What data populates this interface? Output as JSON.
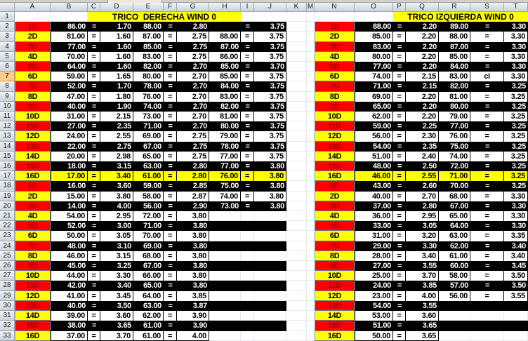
{
  "columns": [
    "A",
    "B",
    "C",
    "D",
    "E",
    "F",
    "G",
    "H",
    "I",
    "J",
    "K",
    "M",
    "N",
    "O",
    "P",
    "Q",
    "R",
    "S",
    "T"
  ],
  "row_numbers": [
    "1",
    "2",
    "3",
    "4",
    "5",
    "6",
    "7",
    "8",
    "9",
    "10",
    "11",
    "12",
    "13",
    "14",
    "15",
    "16",
    "17",
    "18",
    "19",
    "20",
    "21",
    "22",
    "23",
    "24",
    "25",
    "26",
    "27",
    "28",
    "29",
    "30",
    "31",
    "32",
    "33"
  ],
  "highlighted_row_header": "7",
  "colors": {
    "label_red_bg": "#FF0000",
    "label_red_text": "#A00000",
    "label_yellow_bg": "#FFFF00",
    "black_row_bg": "#000000",
    "highlight_row_bg": "#FFFF00",
    "title_bg": "#FFFF00"
  },
  "left_table": {
    "title": "TRICO  DERECHA WIND 0",
    "rows": [
      {
        "row": "2",
        "label": "1D",
        "label_style": "red",
        "style": "black",
        "span": 9,
        "cells": [
          "86.00",
          "=",
          "1.70",
          "88.00",
          "=",
          "2.80",
          "",
          "=",
          "3.75"
        ]
      },
      {
        "row": "3",
        "label": "2D",
        "label_style": "yellow",
        "style": "white",
        "span": 9,
        "cells": [
          "81.00",
          "=",
          "1.60",
          "87.00",
          "=",
          "2.75",
          "88.00",
          "=",
          "3.75"
        ]
      },
      {
        "row": "4",
        "label": "3D",
        "label_style": "red",
        "style": "black",
        "span": 9,
        "cells": [
          "77.00",
          "=",
          "1.60",
          "85.00",
          "=",
          "2.75",
          "87.00",
          "=",
          "3.75"
        ]
      },
      {
        "row": "5",
        "label": "4D",
        "label_style": "yellow",
        "style": "white",
        "span": 9,
        "cells": [
          "70.00",
          "=",
          "1.60",
          "83.00",
          "=",
          "2.75",
          "86.00",
          "=",
          "3.75"
        ]
      },
      {
        "row": "6",
        "label": "5D",
        "label_style": "red",
        "style": "black",
        "span": 9,
        "cells": [
          "64.00",
          "=",
          "1.60",
          "82.00",
          "=",
          "2.70",
          "85.00",
          "=",
          "3.70"
        ]
      },
      {
        "row": "7",
        "label": "6D",
        "label_style": "yellow",
        "style": "white",
        "span": 9,
        "cells": [
          "59.00",
          "=",
          "1.65",
          "80.00",
          "=",
          "2.70",
          "85.00",
          "=",
          "3.75"
        ]
      },
      {
        "row": "8",
        "label": "7D",
        "label_style": "red",
        "style": "black",
        "span": 9,
        "cells": [
          "52.00",
          "=",
          "1.70",
          "78.00",
          "=",
          "2.70",
          "84.00",
          "=",
          "3.75"
        ]
      },
      {
        "row": "9",
        "label": "8D",
        "label_style": "yellow",
        "style": "white",
        "span": 9,
        "cells": [
          "47.00",
          "=",
          "1.80",
          "76.00",
          "=",
          "2.70",
          "83.00",
          "=",
          "3.75"
        ]
      },
      {
        "row": "10",
        "label": "9D",
        "label_style": "red",
        "style": "black",
        "span": 9,
        "cells": [
          "40.00",
          "=",
          "1.90",
          "74.00",
          "=",
          "2.70",
          "82.00",
          "=",
          "3.75"
        ]
      },
      {
        "row": "11",
        "label": "10D",
        "label_style": "yellow",
        "style": "white",
        "span": 9,
        "cells": [
          "31.00",
          "=",
          "2.15",
          "73.00",
          "=",
          "2.70",
          "81.00",
          "=",
          "3.75"
        ]
      },
      {
        "row": "12",
        "label": "11D",
        "label_style": "red",
        "style": "black",
        "span": 9,
        "cells": [
          "27.00",
          "=",
          "2.35",
          "71.00",
          "=",
          "2.70",
          "80.00",
          "=",
          "3.75"
        ]
      },
      {
        "row": "13",
        "label": "12D",
        "label_style": "yellow",
        "style": "white",
        "span": 9,
        "cells": [
          "24.00",
          "=",
          "2.55",
          "69.00",
          "=",
          "2.75",
          "79.00",
          "=",
          "3.75"
        ]
      },
      {
        "row": "14",
        "label": "13D",
        "label_style": "red",
        "style": "black",
        "span": 9,
        "cells": [
          "22.00",
          "=",
          "2.75",
          "67.00",
          "=",
          "2.75",
          "78.00",
          "=",
          "3.75"
        ]
      },
      {
        "row": "15",
        "label": "14D",
        "label_style": "yellow",
        "style": "white",
        "span": 9,
        "cells": [
          "20.00",
          "=",
          "2.98",
          "65.00",
          "=",
          "2.75",
          "77.00",
          "=",
          "3.75"
        ]
      },
      {
        "row": "16",
        "label": "15D",
        "label_style": "red",
        "style": "black",
        "span": 9,
        "cells": [
          "18.00",
          "=",
          "3.15",
          "63.00",
          "=",
          "2.80",
          "77.00",
          "=",
          "3.80"
        ]
      },
      {
        "row": "17",
        "label": "16D",
        "label_style": "yellow",
        "style": "yellow",
        "span": 9,
        "cells": [
          "17.00",
          "=",
          "3.40",
          "61.00",
          "=",
          "2.80",
          "76.00",
          "=",
          "3.80"
        ]
      },
      {
        "row": "18",
        "label": "1D",
        "label_style": "red",
        "style": "black",
        "span": 9,
        "cells": [
          "16.00",
          "=",
          "3.60",
          "59.00",
          "=",
          "2.85",
          "75.00",
          "=",
          "3.80"
        ]
      },
      {
        "row": "19",
        "label": "2D",
        "label_style": "yellow",
        "style": "white",
        "span": 9,
        "cells": [
          "15.00",
          "=",
          "3.80",
          "58.00",
          "=",
          "2.87",
          "74.00",
          "=",
          "3.80"
        ]
      },
      {
        "row": "20",
        "label": "3D",
        "label_style": "red",
        "style": "black",
        "span": 9,
        "cells": [
          "14.00",
          "=",
          "4.00",
          "56.00",
          "=",
          "2.90",
          "73.00",
          "=",
          "3.80"
        ]
      },
      {
        "row": "21",
        "label": "4D",
        "label_style": "yellow",
        "style": "white",
        "span": 6,
        "cells": [
          "54.00",
          "=",
          "2.95",
          "72.00",
          "=",
          "3.80",
          "",
          "",
          ""
        ]
      },
      {
        "row": "22",
        "label": "5D",
        "label_style": "red",
        "style": "black",
        "span": 6,
        "cells": [
          "52.00",
          "=",
          "3.00",
          "71.00",
          "=",
          "3.80",
          "",
          "",
          ""
        ]
      },
      {
        "row": "23",
        "label": "6D",
        "label_style": "yellow",
        "style": "white",
        "span": 6,
        "cells": [
          "50.00",
          "=",
          "3.05",
          "70.00",
          "=",
          "3.80",
          "",
          "",
          ""
        ]
      },
      {
        "row": "24",
        "label": "7D",
        "label_style": "red",
        "style": "black",
        "span": 6,
        "cells": [
          "48.00",
          "=",
          "3.10",
          "69.00",
          "=",
          "3.80",
          "",
          "",
          ""
        ]
      },
      {
        "row": "25",
        "label": "8D",
        "label_style": "yellow",
        "style": "white",
        "span": 6,
        "cells": [
          "46.00",
          "=",
          "3.15",
          "68.00",
          "=",
          "3.80",
          "",
          "",
          ""
        ]
      },
      {
        "row": "26",
        "label": "9D",
        "label_style": "red",
        "style": "black",
        "span": 6,
        "cells": [
          "45.00",
          "=",
          "3.25",
          "67.00",
          "=",
          "3.80",
          "",
          "",
          ""
        ]
      },
      {
        "row": "27",
        "label": "10D",
        "label_style": "yellow",
        "style": "white",
        "span": 6,
        "cells": [
          "44.00",
          "=",
          "3.30",
          "66.00",
          "=",
          "3.80",
          "",
          "",
          ""
        ]
      },
      {
        "row": "28",
        "label": "11D",
        "label_style": "red",
        "style": "black",
        "span": 6,
        "cells": [
          "42.00",
          "=",
          "3.40",
          "65.00",
          "=",
          "3.80",
          "",
          "",
          ""
        ]
      },
      {
        "row": "29",
        "label": "12D",
        "label_style": "yellow",
        "style": "white",
        "span": 6,
        "cells": [
          "41.00",
          "=",
          "3.45",
          "64.00",
          "=",
          "3.85",
          "",
          "",
          ""
        ]
      },
      {
        "row": "30",
        "label": "13D",
        "label_style": "red",
        "style": "black",
        "span": 6,
        "cells": [
          "40.00",
          "=",
          "3.50",
          "63.00",
          "=",
          "3.87",
          "",
          "",
          ""
        ]
      },
      {
        "row": "31",
        "label": "14D",
        "label_style": "yellow",
        "style": "white",
        "span": 6,
        "cells": [
          "39.00",
          "=",
          "3.60",
          "62.00",
          "=",
          "3.90",
          "",
          "",
          ""
        ]
      },
      {
        "row": "32",
        "label": "15D",
        "label_style": "red",
        "style": "black",
        "span": 6,
        "cells": [
          "38.00",
          "=",
          "3.65",
          "61.00",
          "=",
          "3.90",
          "",
          "",
          ""
        ]
      },
      {
        "row": "33",
        "label": "16D",
        "label_style": "yellow",
        "style": "white",
        "span": 6,
        "cells": [
          "37.00",
          "=",
          "3.70",
          "61.00",
          "=",
          "4.00",
          "",
          "",
          ""
        ]
      }
    ]
  },
  "right_table": {
    "title": "TRICO IZQUIERDA WIND 0",
    "rows": [
      {
        "row": "2",
        "label": "1D",
        "label_style": "red",
        "style": "black",
        "span": 6,
        "cells": [
          "88.00",
          "=",
          "2.20",
          "89.00",
          "=",
          "3.30"
        ]
      },
      {
        "row": "3",
        "label": "2D",
        "label_style": "yellow",
        "style": "white",
        "span": 6,
        "cells": [
          "85.00",
          "=",
          "2.20",
          "88.00",
          "=",
          "3.30"
        ]
      },
      {
        "row": "4",
        "label": "3D",
        "label_style": "red",
        "style": "black",
        "span": 6,
        "cells": [
          "83.00",
          "=",
          "2.20",
          "87.00",
          "=",
          "3.30"
        ]
      },
      {
        "row": "5",
        "label": "4D",
        "label_style": "yellow",
        "style": "white",
        "span": 6,
        "cells": [
          "80.00",
          "=",
          "2.20",
          "85.00",
          "=",
          "3.30"
        ]
      },
      {
        "row": "6",
        "label": "5D",
        "label_style": "red",
        "style": "black",
        "span": 6,
        "cells": [
          "77.00",
          "=",
          "2.20",
          "84.00",
          "=",
          "3.30"
        ]
      },
      {
        "row": "7",
        "label": "6D",
        "label_style": "yellow",
        "style": "white",
        "span": 6,
        "cells": [
          "74.00",
          "=",
          "2.15",
          "83.00",
          "ci",
          "3.30"
        ]
      },
      {
        "row": "8",
        "label": "7D",
        "label_style": "red",
        "style": "black",
        "span": 6,
        "cells": [
          "71.00",
          "=",
          "2.15",
          "82.00",
          "=",
          "3.25"
        ]
      },
      {
        "row": "9",
        "label": "8D",
        "label_style": "yellow",
        "style": "white",
        "span": 6,
        "cells": [
          "69.00",
          "=",
          "2.20",
          "81.00",
          "=",
          "3.25"
        ]
      },
      {
        "row": "10",
        "label": "9D",
        "label_style": "red",
        "style": "black",
        "span": 6,
        "cells": [
          "65.00",
          "=",
          "2.20",
          "80.00",
          "=",
          "3.25"
        ]
      },
      {
        "row": "11",
        "label": "10D",
        "label_style": "yellow",
        "style": "white",
        "span": 6,
        "cells": [
          "62.00",
          "=",
          "2.20",
          "79.00",
          "=",
          "3.25"
        ]
      },
      {
        "row": "12",
        "label": "11D",
        "label_style": "red",
        "style": "black",
        "span": 6,
        "cells": [
          "59.00",
          "=",
          "2.25",
          "77.00",
          "=",
          "3.25"
        ]
      },
      {
        "row": "13",
        "label": "12D",
        "label_style": "yellow",
        "style": "white",
        "span": 6,
        "cells": [
          "56.00",
          "=",
          "2.30",
          "76.00",
          "=",
          "3.25"
        ]
      },
      {
        "row": "14",
        "label": "13D",
        "label_style": "red",
        "style": "black",
        "span": 6,
        "cells": [
          "54.00",
          "=",
          "2.35",
          "75.00",
          "=",
          "3.25"
        ]
      },
      {
        "row": "15",
        "label": "14D",
        "label_style": "yellow",
        "style": "white",
        "span": 6,
        "cells": [
          "51.00",
          "=",
          "2.40",
          "74.00",
          "=",
          "3.25"
        ]
      },
      {
        "row": "16",
        "label": "15D",
        "label_style": "red",
        "style": "black",
        "span": 6,
        "cells": [
          "48.00",
          "=",
          "2.50",
          "72.00",
          "=",
          "3.25"
        ]
      },
      {
        "row": "17",
        "label": "16D",
        "label_style": "yellow",
        "style": "yellow",
        "span": 6,
        "cells": [
          "46.00",
          "=",
          "2.55",
          "71.00",
          "=",
          "3.25"
        ]
      },
      {
        "row": "18",
        "label": "1D",
        "label_style": "red",
        "style": "black",
        "span": 6,
        "cells": [
          "43.00",
          "=",
          "2.60",
          "70.00",
          "=",
          "3.25"
        ]
      },
      {
        "row": "19",
        "label": "2D",
        "label_style": "yellow",
        "style": "white",
        "span": 6,
        "cells": [
          "40.00",
          "=",
          "2.70",
          "68.00",
          "=",
          "3.30"
        ]
      },
      {
        "row": "20",
        "label": "3D",
        "label_style": "red",
        "style": "black",
        "span": 6,
        "cells": [
          "37.00",
          "=",
          "2.80",
          "67.00",
          "=",
          "3.30"
        ]
      },
      {
        "row": "21",
        "label": "4D",
        "label_style": "yellow",
        "style": "white",
        "span": 6,
        "cells": [
          "36.00",
          "=",
          "2.95",
          "65.00",
          "=",
          "3.30"
        ]
      },
      {
        "row": "22",
        "label": "5D",
        "label_style": "red",
        "style": "black",
        "span": 6,
        "cells": [
          "33.00",
          "=",
          "3.05",
          "64.00",
          "=",
          "3.30"
        ]
      },
      {
        "row": "23",
        "label": "6D",
        "label_style": "yellow",
        "style": "white",
        "span": 6,
        "cells": [
          "31.00",
          "=",
          "3.20",
          "63.00",
          "=",
          "3.35"
        ]
      },
      {
        "row": "24",
        "label": "7D",
        "label_style": "red",
        "style": "black",
        "span": 6,
        "cells": [
          "29.00",
          "=",
          "3.30",
          "62.00",
          "=",
          "3.40"
        ]
      },
      {
        "row": "25",
        "label": "8D",
        "label_style": "yellow",
        "style": "white",
        "span": 6,
        "cells": [
          "28.00",
          "=",
          "3.40",
          "61.00",
          "=",
          "3.40"
        ]
      },
      {
        "row": "26",
        "label": "9D",
        "label_style": "red",
        "style": "black",
        "span": 6,
        "cells": [
          "27.00",
          "=",
          "3.55",
          "60.00",
          "=",
          "3.45"
        ]
      },
      {
        "row": "27",
        "label": "10D",
        "label_style": "yellow",
        "style": "white",
        "span": 6,
        "cells": [
          "25.00",
          "=",
          "3.70",
          "58.00",
          "=",
          "3.50"
        ]
      },
      {
        "row": "28",
        "label": "11D",
        "label_style": "red",
        "style": "black",
        "span": 6,
        "cells": [
          "24.00",
          "=",
          "3.85",
          "57.00",
          "=",
          "3.50"
        ]
      },
      {
        "row": "29",
        "label": "12D",
        "label_style": "yellow",
        "style": "white",
        "span": 6,
        "cells": [
          "23.00",
          "=",
          "4.00",
          "56.00",
          "=",
          "3.55"
        ]
      },
      {
        "row": "30",
        "label": "13D",
        "label_style": "red",
        "style": "black",
        "span": 3,
        "cells": [
          "54.00",
          "=",
          "3.55",
          "",
          "",
          ""
        ]
      },
      {
        "row": "31",
        "label": "14D",
        "label_style": "yellow",
        "style": "white",
        "span": 3,
        "cells": [
          "53.00",
          "=",
          "3.60",
          "",
          "",
          ""
        ]
      },
      {
        "row": "32",
        "label": "15D",
        "label_style": "red",
        "style": "black",
        "span": 3,
        "cells": [
          "51.00",
          "=",
          "3.65",
          "",
          "",
          ""
        ]
      },
      {
        "row": "33",
        "label": "16D",
        "label_style": "yellow",
        "style": "white",
        "span": 3,
        "cells": [
          "50.00",
          "=",
          "3.65",
          "",
          "",
          ""
        ]
      }
    ]
  }
}
